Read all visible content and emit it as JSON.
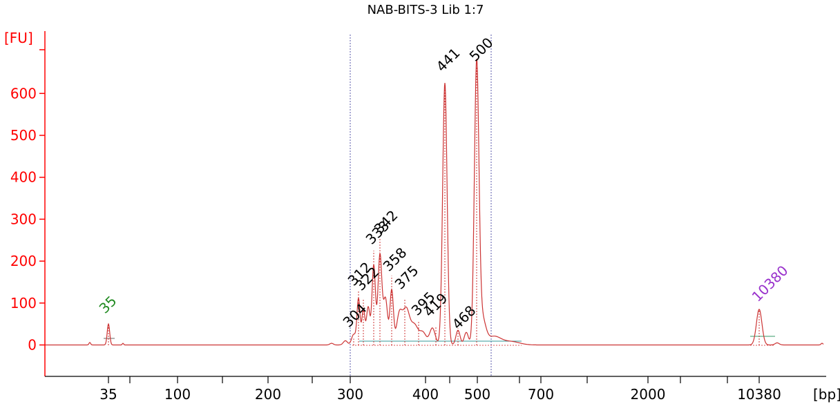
{
  "chart_data": {
    "type": "line",
    "title": "NAB-BITS-3 Lib 1:7",
    "ylabel": "[FU]",
    "xlabel": "[bp]",
    "ylim": [
      -70,
      720
    ],
    "yticks": [
      0,
      100,
      200,
      300,
      400,
      500,
      600
    ],
    "xticks": [
      "35",
      "100",
      "200",
      "300",
      "400",
      "500",
      "700",
      "2000",
      "10380"
    ],
    "xscale": "ladder (nonlinear, migration time)",
    "grid": false,
    "colors": {
      "axis": "#ff0000",
      "trace": "#cc3333",
      "marker_lower": "#228b22",
      "marker_upper": "#9932cc",
      "region_line": "#5555aa",
      "baseline": "#339999"
    },
    "peaks": [
      {
        "label": "35",
        "fu": 50,
        "color": "lower"
      },
      {
        "label": "304",
        "fu": 15,
        "color": "peak"
      },
      {
        "label": "312",
        "fu": 130,
        "color": "peak"
      },
      {
        "label": "322",
        "fu": 110,
        "color": "peak"
      },
      {
        "label": "333",
        "fu": 225,
        "color": "peak"
      },
      {
        "label": "342",
        "fu": 255,
        "color": "peak"
      },
      {
        "label": "358",
        "fu": 165,
        "color": "peak"
      },
      {
        "label": "375",
        "fu": 110,
        "color": "peak"
      },
      {
        "label": "395",
        "fu": 55,
        "color": "peak"
      },
      {
        "label": "419",
        "fu": 45,
        "color": "peak"
      },
      {
        "label": "441",
        "fu": 625,
        "color": "peak"
      },
      {
        "label": "468",
        "fu": 40,
        "color": "peak"
      },
      {
        "label": "500",
        "fu": 665,
        "color": "peak"
      },
      {
        "label": "10380",
        "fu": 85,
        "color": "upper"
      }
    ],
    "region": {
      "from": "300",
      "to": "~550"
    }
  }
}
